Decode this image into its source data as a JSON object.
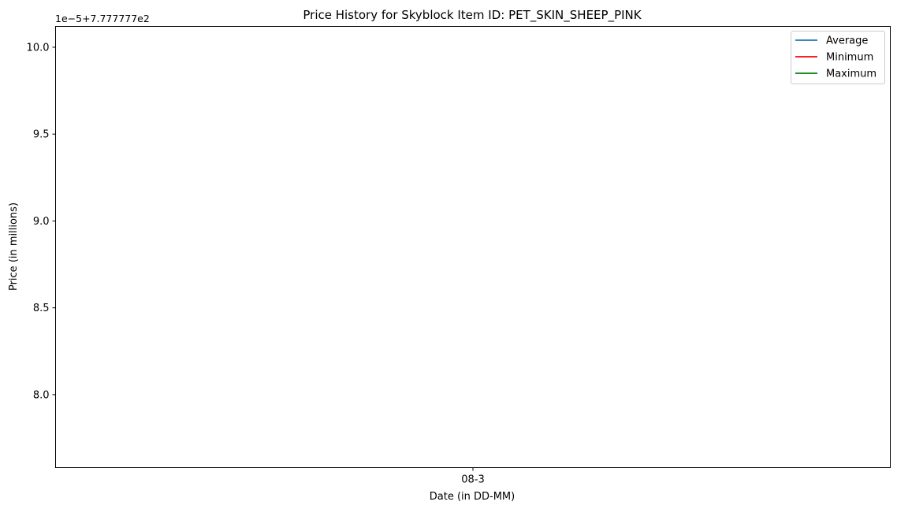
{
  "chart_data": {
    "type": "line",
    "title": "Price History for Skyblock Item ID: PET_SKIN_SHEEP_PINK",
    "xlabel": "Date (in DD-MM)",
    "ylabel": "Price (in millions)",
    "offset_text": "1e−5+7.777777e2",
    "categories": [
      "08-3"
    ],
    "yticks": [
      "8.0",
      "8.5",
      "9.0",
      "9.5",
      "10.0"
    ],
    "ylim": [
      7.58,
      10.12
    ],
    "series": [
      {
        "name": "Average",
        "color": "#1f77b4",
        "values": [
          null
        ]
      },
      {
        "name": "Minimum",
        "color": "#ff0000",
        "values": [
          null
        ]
      },
      {
        "name": "Maximum",
        "color": "#008000",
        "values": [
          null
        ]
      }
    ],
    "legend_position": "top-right",
    "grid": false
  }
}
